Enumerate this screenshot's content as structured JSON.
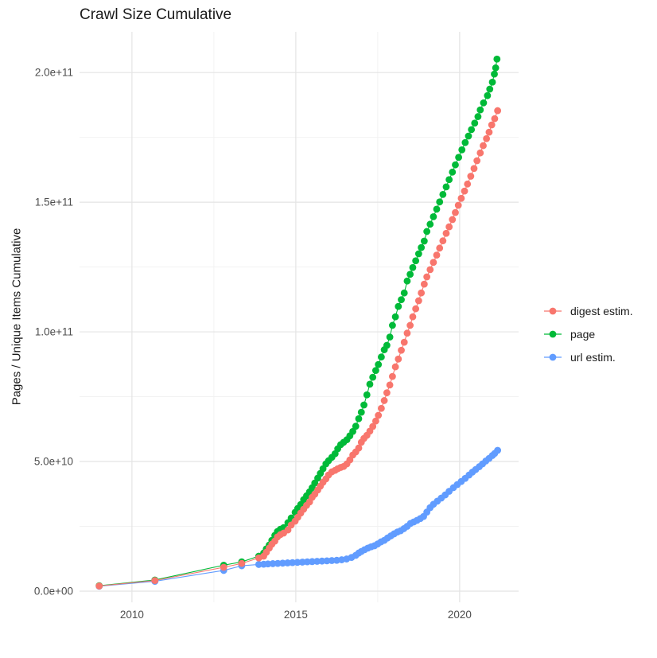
{
  "chart_data": {
    "type": "scatter",
    "title": "Crawl Size Cumulative",
    "xlabel": "",
    "ylabel": "Pages / Unique Items Cumulative",
    "value_unit": "1e9 (values below are billions of pages / unique items)",
    "x_domain": [
      2008.4,
      2021.8
    ],
    "y_domain_e9": [
      -4.3,
      215.7
    ],
    "x_major_ticks": [
      {
        "value": 2010,
        "label": "2010"
      },
      {
        "value": 2015,
        "label": "2015"
      },
      {
        "value": 2020,
        "label": "2020"
      }
    ],
    "x_minor_ticks": [
      2012.5,
      2017.5
    ],
    "y_major_ticks": [
      {
        "value_e9": 0,
        "label": "0.0e+00"
      },
      {
        "value_e9": 50,
        "label": "5.0e+10"
      },
      {
        "value_e9": 100,
        "label": "1.0e+11"
      },
      {
        "value_e9": 150,
        "label": "1.5e+11"
      },
      {
        "value_e9": 200,
        "label": "2.0e+11"
      }
    ],
    "y_minor_ticks_e9": [
      25,
      75,
      125,
      175
    ],
    "grid": {
      "major_color": "#e4e4e4",
      "minor_color": "#f1f1f1",
      "background": "#ffffff"
    },
    "legend_position": "right",
    "draw_order": [
      "url estim.",
      "page",
      "digest estim."
    ],
    "series": [
      {
        "name": "digest estim.",
        "color": "#F8766D",
        "points": [
          [
            2009.0,
            2.0
          ],
          [
            2010.7,
            4.1
          ],
          [
            2012.8,
            9.2
          ],
          [
            2013.35,
            10.7
          ],
          [
            2013.87,
            12.8
          ],
          [
            2014.02,
            13.5
          ],
          [
            2014.1,
            15.0
          ],
          [
            2014.19,
            16.6
          ],
          [
            2014.27,
            18.1
          ],
          [
            2014.36,
            19.3
          ],
          [
            2014.44,
            20.9
          ],
          [
            2014.53,
            21.8
          ],
          [
            2014.63,
            22.4
          ],
          [
            2014.76,
            23.6
          ],
          [
            2014.86,
            25.5
          ],
          [
            2014.98,
            27.0
          ],
          [
            2015.06,
            28.5
          ],
          [
            2015.15,
            30.1
          ],
          [
            2015.24,
            31.6
          ],
          [
            2015.33,
            33.1
          ],
          [
            2015.42,
            34.4
          ],
          [
            2015.5,
            36.2
          ],
          [
            2015.58,
            37.4
          ],
          [
            2015.67,
            39.0
          ],
          [
            2015.75,
            40.5
          ],
          [
            2015.83,
            42.0
          ],
          [
            2015.92,
            43.3
          ],
          [
            2016.0,
            44.8
          ],
          [
            2016.1,
            46.0
          ],
          [
            2016.2,
            46.6
          ],
          [
            2016.28,
            47.2
          ],
          [
            2016.37,
            47.7
          ],
          [
            2016.46,
            48.1
          ],
          [
            2016.56,
            49.1
          ],
          [
            2016.65,
            50.6
          ],
          [
            2016.74,
            52.5
          ],
          [
            2016.83,
            53.7
          ],
          [
            2016.92,
            55.2
          ],
          [
            2017.0,
            57.4
          ],
          [
            2017.08,
            58.9
          ],
          [
            2017.17,
            60.1
          ],
          [
            2017.26,
            61.7
          ],
          [
            2017.35,
            63.5
          ],
          [
            2017.44,
            65.6
          ],
          [
            2017.52,
            67.8
          ],
          [
            2017.61,
            70.5
          ],
          [
            2017.7,
            73.5
          ],
          [
            2017.78,
            76.5
          ],
          [
            2017.87,
            79.5
          ],
          [
            2017.95,
            82.8
          ],
          [
            2018.04,
            86.5
          ],
          [
            2018.13,
            89.5
          ],
          [
            2018.22,
            92.9
          ],
          [
            2018.31,
            96.0
          ],
          [
            2018.4,
            99.5
          ],
          [
            2018.49,
            102.5
          ],
          [
            2018.57,
            105.8
          ],
          [
            2018.66,
            108.9
          ],
          [
            2018.75,
            112.0
          ],
          [
            2018.83,
            115.0
          ],
          [
            2018.92,
            118.4
          ],
          [
            2019.0,
            121.2
          ],
          [
            2019.1,
            124.0
          ],
          [
            2019.2,
            126.8
          ],
          [
            2019.3,
            129.6
          ],
          [
            2019.39,
            132.3
          ],
          [
            2019.49,
            135.1
          ],
          [
            2019.59,
            138.0
          ],
          [
            2019.68,
            140.5
          ],
          [
            2019.78,
            143.3
          ],
          [
            2019.87,
            146.0
          ],
          [
            2019.96,
            148.8
          ],
          [
            2020.05,
            151.5
          ],
          [
            2020.15,
            154.3
          ],
          [
            2020.24,
            157.0
          ],
          [
            2020.34,
            160.0
          ],
          [
            2020.44,
            163.0
          ],
          [
            2020.53,
            166.0
          ],
          [
            2020.63,
            169.0
          ],
          [
            2020.72,
            171.8
          ],
          [
            2020.82,
            174.5
          ],
          [
            2020.9,
            177.0
          ],
          [
            2020.98,
            179.8
          ],
          [
            2021.07,
            182.2
          ],
          [
            2021.16,
            185.3
          ]
        ]
      },
      {
        "name": "page",
        "color": "#00BA38",
        "points": [
          [
            2009.0,
            2.1
          ],
          [
            2010.7,
            4.3
          ],
          [
            2012.8,
            10.0
          ],
          [
            2013.35,
            11.3
          ],
          [
            2013.87,
            13.5
          ],
          [
            2014.02,
            14.7
          ],
          [
            2014.1,
            16.3
          ],
          [
            2014.19,
            17.8
          ],
          [
            2014.27,
            19.6
          ],
          [
            2014.36,
            21.5
          ],
          [
            2014.44,
            23.0
          ],
          [
            2014.53,
            23.9
          ],
          [
            2014.63,
            24.5
          ],
          [
            2014.76,
            26.4
          ],
          [
            2014.86,
            28.2
          ],
          [
            2014.98,
            30.4
          ],
          [
            2015.06,
            31.9
          ],
          [
            2015.15,
            33.4
          ],
          [
            2015.24,
            35.3
          ],
          [
            2015.33,
            36.8
          ],
          [
            2015.42,
            38.3
          ],
          [
            2015.5,
            39.9
          ],
          [
            2015.58,
            41.7
          ],
          [
            2015.67,
            43.6
          ],
          [
            2015.75,
            45.4
          ],
          [
            2015.83,
            47.2
          ],
          [
            2015.92,
            49.1
          ],
          [
            2016.0,
            50.3
          ],
          [
            2016.1,
            51.6
          ],
          [
            2016.2,
            53.0
          ],
          [
            2016.28,
            54.9
          ],
          [
            2016.37,
            56.5
          ],
          [
            2016.46,
            57.4
          ],
          [
            2016.56,
            58.4
          ],
          [
            2016.65,
            59.9
          ],
          [
            2016.74,
            61.6
          ],
          [
            2016.83,
            63.6
          ],
          [
            2016.92,
            66.5
          ],
          [
            2017.0,
            69.0
          ],
          [
            2017.08,
            71.8
          ],
          [
            2017.17,
            75.7
          ],
          [
            2017.26,
            79.8
          ],
          [
            2017.35,
            82.5
          ],
          [
            2017.44,
            85.1
          ],
          [
            2017.52,
            87.4
          ],
          [
            2017.61,
            90.3
          ],
          [
            2017.7,
            93.1
          ],
          [
            2017.78,
            94.8
          ],
          [
            2017.87,
            98.0
          ],
          [
            2017.95,
            102.5
          ],
          [
            2018.04,
            105.8
          ],
          [
            2018.13,
            109.8
          ],
          [
            2018.22,
            112.4
          ],
          [
            2018.31,
            115.0
          ],
          [
            2018.4,
            119.6
          ],
          [
            2018.49,
            122.2
          ],
          [
            2018.57,
            124.8
          ],
          [
            2018.66,
            127.4
          ],
          [
            2018.75,
            130.1
          ],
          [
            2018.83,
            132.5
          ],
          [
            2018.92,
            135.0
          ],
          [
            2019.0,
            138.7
          ],
          [
            2019.1,
            141.5
          ],
          [
            2019.2,
            144.4
          ],
          [
            2019.3,
            147.3
          ],
          [
            2019.39,
            150.1
          ],
          [
            2019.49,
            153.0
          ],
          [
            2019.59,
            155.9
          ],
          [
            2019.68,
            158.7
          ],
          [
            2019.78,
            161.6
          ],
          [
            2019.87,
            164.4
          ],
          [
            2019.97,
            167.3
          ],
          [
            2020.07,
            170.2
          ],
          [
            2020.17,
            173.0
          ],
          [
            2020.27,
            175.5
          ],
          [
            2020.36,
            178.0
          ],
          [
            2020.46,
            180.5
          ],
          [
            2020.56,
            183.0
          ],
          [
            2020.63,
            185.6
          ],
          [
            2020.73,
            188.3
          ],
          [
            2020.85,
            191.1
          ],
          [
            2020.92,
            193.6
          ],
          [
            2021.0,
            196.3
          ],
          [
            2021.06,
            199.4
          ],
          [
            2021.1,
            201.8
          ],
          [
            2021.14,
            205.2
          ]
        ]
      },
      {
        "name": "url estim.",
        "color": "#619CFF",
        "points": [
          [
            2009.0,
            1.9
          ],
          [
            2010.7,
            3.8
          ],
          [
            2012.8,
            8.0
          ],
          [
            2013.35,
            9.8
          ],
          [
            2013.87,
            10.3
          ],
          [
            2014.02,
            10.4
          ],
          [
            2014.15,
            10.5
          ],
          [
            2014.3,
            10.6
          ],
          [
            2014.45,
            10.7
          ],
          [
            2014.6,
            10.8
          ],
          [
            2014.75,
            10.9
          ],
          [
            2014.9,
            11.0
          ],
          [
            2015.05,
            11.1
          ],
          [
            2015.2,
            11.2
          ],
          [
            2015.35,
            11.3
          ],
          [
            2015.5,
            11.4
          ],
          [
            2015.65,
            11.5
          ],
          [
            2015.8,
            11.6
          ],
          [
            2015.95,
            11.7
          ],
          [
            2016.1,
            11.8
          ],
          [
            2016.25,
            11.9
          ],
          [
            2016.4,
            12.1
          ],
          [
            2016.55,
            12.4
          ],
          [
            2016.7,
            13.0
          ],
          [
            2016.83,
            13.8
          ],
          [
            2016.92,
            14.7
          ],
          [
            2017.0,
            15.3
          ],
          [
            2017.1,
            16.0
          ],
          [
            2017.2,
            16.6
          ],
          [
            2017.3,
            17.1
          ],
          [
            2017.4,
            17.5
          ],
          [
            2017.5,
            18.2
          ],
          [
            2017.6,
            19.0
          ],
          [
            2017.7,
            19.6
          ],
          [
            2017.8,
            20.5
          ],
          [
            2017.9,
            21.3
          ],
          [
            2018.0,
            22.1
          ],
          [
            2018.1,
            22.8
          ],
          [
            2018.2,
            23.3
          ],
          [
            2018.3,
            24.1
          ],
          [
            2018.4,
            25.0
          ],
          [
            2018.5,
            26.1
          ],
          [
            2018.6,
            26.7
          ],
          [
            2018.7,
            27.3
          ],
          [
            2018.8,
            28.0
          ],
          [
            2018.9,
            28.8
          ],
          [
            2019.0,
            30.5
          ],
          [
            2019.1,
            32.2
          ],
          [
            2019.2,
            33.5
          ],
          [
            2019.32,
            34.7
          ],
          [
            2019.44,
            35.9
          ],
          [
            2019.56,
            37.1
          ],
          [
            2019.68,
            38.5
          ],
          [
            2019.81,
            39.9
          ],
          [
            2019.93,
            41.1
          ],
          [
            2020.05,
            42.3
          ],
          [
            2020.17,
            43.5
          ],
          [
            2020.29,
            44.8
          ],
          [
            2020.39,
            45.9
          ],
          [
            2020.49,
            46.9
          ],
          [
            2020.6,
            48.0
          ],
          [
            2020.7,
            49.1
          ],
          [
            2020.8,
            50.2
          ],
          [
            2020.9,
            51.2
          ],
          [
            2021.0,
            52.3
          ],
          [
            2021.07,
            53.1
          ],
          [
            2021.16,
            54.3
          ]
        ]
      }
    ]
  },
  "legend": {
    "items": [
      {
        "label": "digest estim.",
        "color": "#F8766D"
      },
      {
        "label": "page",
        "color": "#00BA38"
      },
      {
        "label": "url estim.",
        "color": "#619CFF"
      }
    ]
  },
  "style": {
    "tick_label_color": "#4d4d4d",
    "text_color": "#1a1a1a",
    "point_radius": 4.4,
    "line_width": 1.1
  }
}
